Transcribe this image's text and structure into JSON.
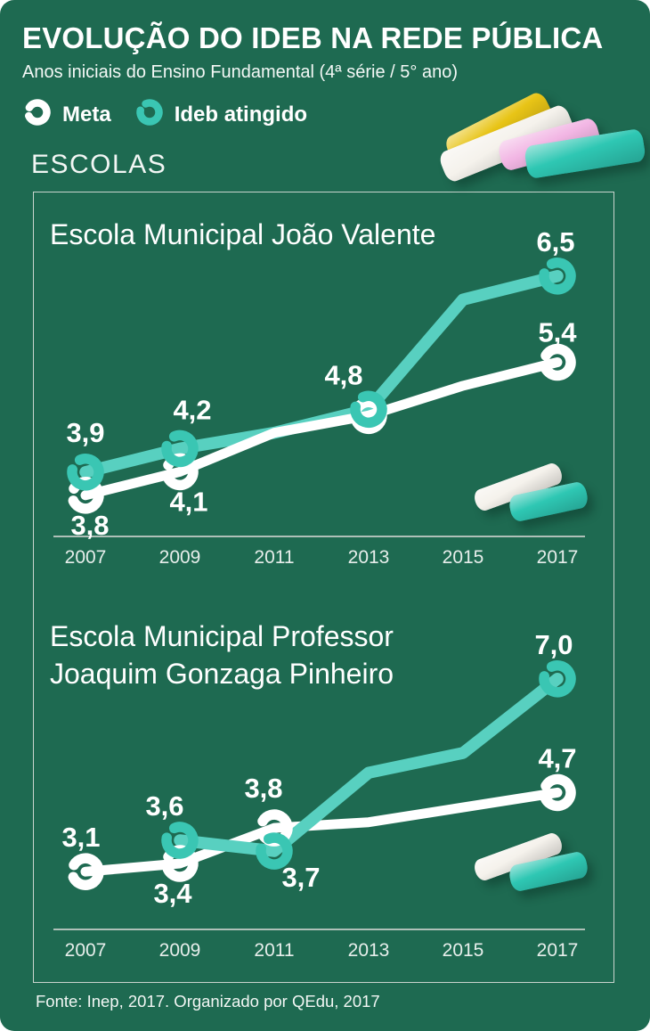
{
  "page": {
    "title": "EVOLUÇÃO DO IDEB NA REDE PÚBLICA",
    "subtitle": "Anos iniciais do Ensino Fundamental (4ª série / 5° ano)",
    "section_heading": "ESCOLAS",
    "footer": "Fonte: Inep, 2017. Organizado por QEdu, 2017"
  },
  "legend": {
    "items": [
      {
        "label": "Meta",
        "color": "#ffffff"
      },
      {
        "label": "Ideb atingido",
        "color": "#3ac6b3"
      }
    ]
  },
  "colors": {
    "background": "#1e6a51",
    "box_border": "#c9d4ce",
    "axis": "#c9cfca",
    "meta": "#ffffff",
    "ideb_line": "#58d0c0",
    "ideb_marker": "#3ac6b3",
    "chalk_yellow": "#e8c416",
    "chalk_white": "#f5f2ec",
    "chalk_pink": "#f2b6e4",
    "chalk_teal": "#2ec7b3"
  },
  "chart_data": [
    {
      "type": "line",
      "title_lines": [
        "Escola Municipal João Valente"
      ],
      "x": [
        2007,
        2009,
        2011,
        2013,
        2015,
        2017
      ],
      "ylim": [
        3.0,
        7.0
      ],
      "grid": false,
      "legend_position": "top-of-page",
      "series": [
        {
          "name": "Meta",
          "color": "#ffffff",
          "values": [
            3.8,
            4.1,
            null,
            4.8,
            null,
            5.4
          ],
          "draw_values": [
            3.8,
            4.1,
            4.5,
            4.8,
            5.1,
            5.4
          ],
          "points": [
            {
              "year": 2007,
              "value": 3.8,
              "label": "3,8",
              "label_pos": "below",
              "dx": 5
            },
            {
              "year": 2009,
              "value": 4.1,
              "label": "4,1",
              "label_pos": "below",
              "dx": 10
            },
            {
              "year": 2013,
              "value": 4.8,
              "label": ""
            },
            {
              "year": 2017,
              "value": 5.4,
              "label": "5,4",
              "label_pos": "above",
              "dy": 5
            }
          ]
        },
        {
          "name": "Ideb atingido",
          "color": "#3ac6b3",
          "values": [
            3.9,
            4.2,
            null,
            4.8,
            null,
            6.5
          ],
          "draw_values": [
            3.9,
            4.2,
            4.5,
            4.8,
            6.2,
            6.5
          ],
          "points": [
            {
              "year": 2007,
              "value": 3.9,
              "label": "3,9",
              "label_pos": "above",
              "dy": -6
            },
            {
              "year": 2009,
              "value": 4.2,
              "label": "4,2",
              "label_pos": "above",
              "dx": 14,
              "dy": -5
            },
            {
              "year": 2013,
              "value": 4.8,
              "label": "4,8",
              "label_pos": "above",
              "dx": -28
            },
            {
              "year": 2017,
              "value": 6.5,
              "label": "6,5",
              "label_pos": "above",
              "dx": -2
            }
          ]
        }
      ]
    },
    {
      "type": "line",
      "title_lines": [
        "Escola Municipal Professor",
        "Joaquim Gonzaga Pinheiro"
      ],
      "x": [
        2007,
        2009,
        2011,
        2013,
        2015,
        2017
      ],
      "ylim": [
        3.0,
        7.2
      ],
      "grid": false,
      "legend_position": "top-of-page",
      "series": [
        {
          "name": "Meta",
          "color": "#ffffff",
          "values": [
            3.1,
            3.4,
            3.8,
            null,
            null,
            4.7
          ],
          "draw_values": [
            3.1,
            3.4,
            3.8,
            4.1,
            4.4,
            4.7
          ],
          "points": [
            {
              "year": 2007,
              "value": 3.1,
              "label": "3,1",
              "label_pos": "above",
              "dx": -5
            },
            {
              "year": 2009,
              "value": 3.4,
              "label": "3,4",
              "label_pos": "below",
              "dx": -8
            },
            {
              "year": 2011,
              "value": 3.8,
              "label": "3,8",
              "label_pos": "above",
              "dx": -12,
              "dy": -6
            },
            {
              "year": 2017,
              "value": 4.7,
              "label": "4,7",
              "label_pos": "above"
            }
          ]
        },
        {
          "name": "Ideb atingido",
          "color": "#3ac6b3",
          "values": [
            null,
            3.6,
            3.7,
            null,
            null,
            7.0
          ],
          "draw_values": [
            null,
            3.6,
            3.7,
            5.1,
            5.5,
            7.0
          ],
          "points": [
            {
              "year": 2009,
              "value": 3.6,
              "label": "3,6",
              "label_pos": "above",
              "dx": -17
            },
            {
              "year": 2011,
              "value": 3.7,
              "label": "3,7",
              "label_pos": "below",
              "dx": 30,
              "dy": -4
            },
            {
              "year": 2017,
              "value": 7.0,
              "label": "7,0",
              "label_pos": "above",
              "dx": -4
            }
          ]
        }
      ]
    }
  ]
}
